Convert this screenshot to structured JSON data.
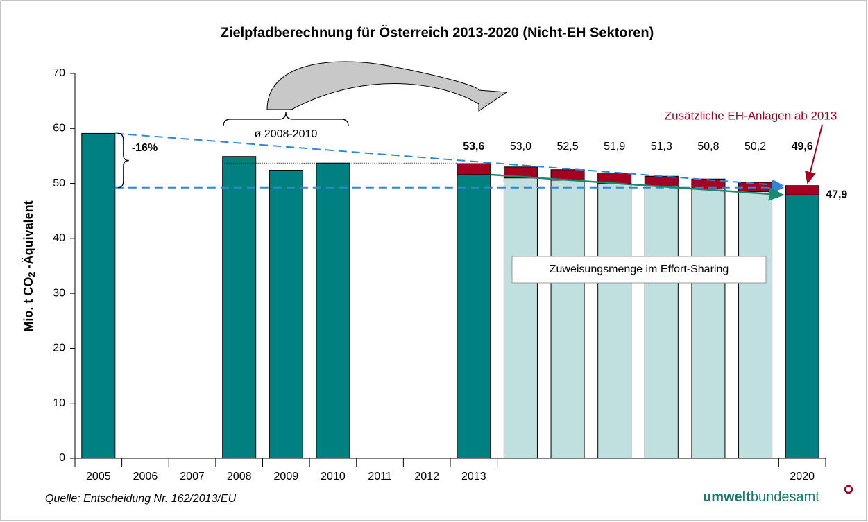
{
  "chart_data": {
    "type": "stacked_bar",
    "title": "Zielpfadberechnung für Österreich 2013-2020 (Nicht-EH Sektoren)",
    "ylabel": [
      "Mio. t CO",
      "2",
      " -Äquivalent"
    ],
    "categories": [
      "2005",
      "2006",
      "2007",
      "2008",
      "2009",
      "2010",
      "2011",
      "2012",
      "2013",
      null,
      null,
      null,
      null,
      null,
      null,
      "2020"
    ],
    "ylim": [
      0,
      70
    ],
    "yticks": [
      0,
      10,
      20,
      30,
      40,
      50,
      60,
      70
    ],
    "grid": false,
    "series": [
      {
        "color": "#008080",
        "values": [
          59.1,
          null,
          null,
          54.9,
          52.4,
          53.7,
          null,
          null,
          51.6,
          null,
          null,
          null,
          null,
          null,
          null,
          47.9
        ],
        "value_labels": [
          null,
          null,
          null,
          null,
          null,
          null,
          null,
          null,
          null,
          null,
          null,
          null,
          null,
          null,
          null,
          "47,9"
        ]
      },
      {
        "name": "Zuweisungsmenge im Effort-Sharing",
        "color": "#c0dfdf",
        "values": [
          null,
          null,
          null,
          null,
          null,
          null,
          null,
          null,
          null,
          51.0,
          50.6,
          50.0,
          49.5,
          49.0,
          48.5,
          null
        ]
      },
      {
        "name": "Zusätzliche EH-Anlagen ab 2013",
        "color": "#a50021",
        "values": [
          null,
          null,
          null,
          null,
          null,
          null,
          null,
          null,
          2.0,
          2.0,
          1.9,
          1.9,
          1.8,
          1.8,
          1.7,
          1.7
        ]
      }
    ],
    "totals": {
      "values": [
        null,
        null,
        null,
        null,
        null,
        null,
        null,
        null,
        53.6,
        53.0,
        52.5,
        51.9,
        51.3,
        50.8,
        50.2,
        49.6
      ],
      "value_labels": [
        null,
        null,
        null,
        null,
        null,
        null,
        null,
        null,
        "53,6",
        "53,0",
        "52,5",
        "51,9",
        "51,3",
        "50,8",
        "50,2",
        "49,6"
      ]
    },
    "annotations": [
      "-16%",
      "ø 2008-2010"
    ],
    "source": "Quelle: Entscheidung Nr. 162/2013/EU",
    "logo": [
      "umwelt",
      "bundesamt"
    ]
  }
}
